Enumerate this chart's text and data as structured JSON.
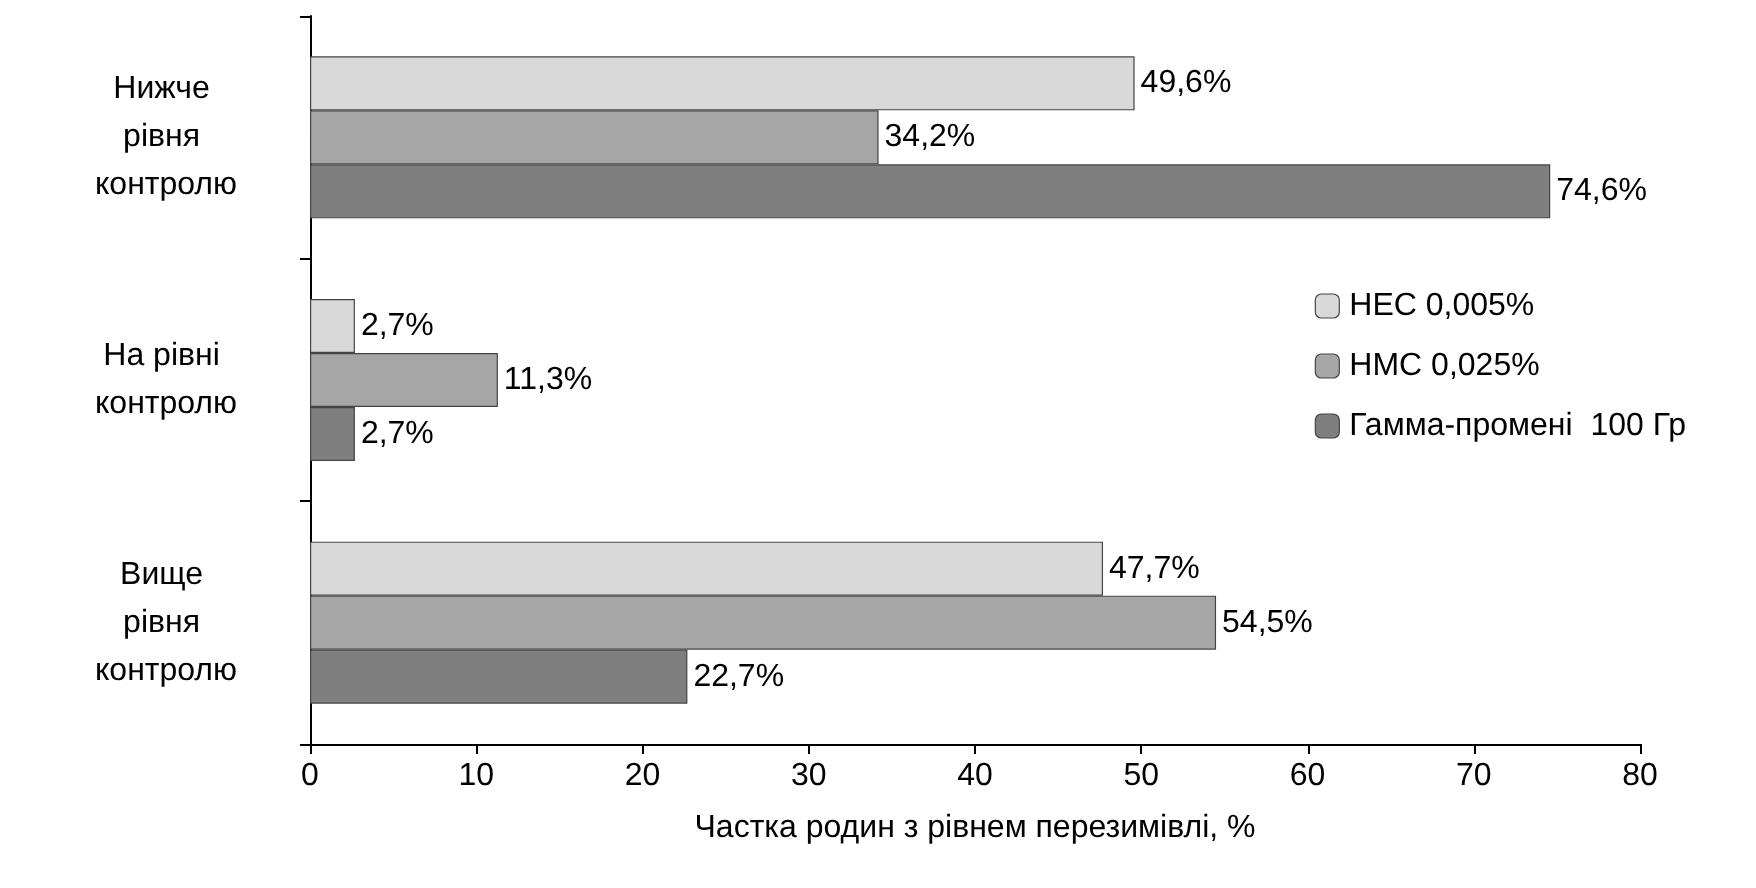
{
  "chart_data": {
    "type": "bar",
    "orientation": "horizontal",
    "xlabel": "Частка родин з рівнем перезимівлі, %",
    "categories": [
      "Нижче рівня контролю",
      "На рівні контролю",
      "Вище рівня контролю"
    ],
    "series": [
      {
        "name": "НЕС 0,005%",
        "color": "#d9d9d9",
        "values": [
          49.6,
          2.7,
          47.7
        ],
        "value_labels": [
          "49,6%",
          "2,7%",
          "47,7%"
        ]
      },
      {
        "name": "НМС 0,025%",
        "color": "#a6a6a6",
        "values": [
          34.2,
          11.3,
          54.5
        ],
        "value_labels": [
          "34,2%",
          "11,3%",
          "54,5%"
        ]
      },
      {
        "name": "Гамма-промені  100 Гр",
        "color": "#7f7f7f",
        "values": [
          74.6,
          2.7,
          22.7
        ],
        "value_labels": [
          "74,6%",
          "2,7%",
          "22,7%"
        ]
      }
    ],
    "xlim": [
      0,
      80
    ],
    "xticks": [
      0,
      10,
      20,
      30,
      40,
      50,
      60,
      70,
      80
    ],
    "grid": false,
    "legend": "right"
  }
}
